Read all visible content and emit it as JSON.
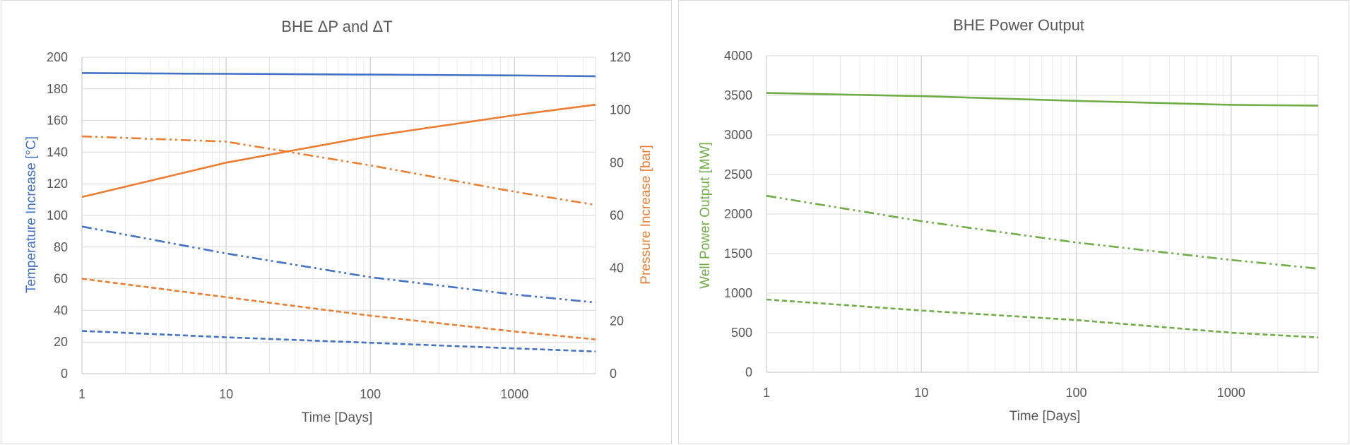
{
  "chart_data": [
    {
      "type": "line",
      "title": "BHE ΔP and ΔT",
      "xlabel": "Time [Days]",
      "ylabel": "Temperature Increase [°C]",
      "y2label": "Pressure Increase [bar]",
      "xscale": "log",
      "xlim": [
        1,
        3650
      ],
      "ylim": [
        0,
        200
      ],
      "y2lim": [
        0,
        120
      ],
      "x_ticks": [
        "1",
        "10",
        "100",
        "1000"
      ],
      "y_ticks": [
        "0",
        "20",
        "40",
        "60",
        "80",
        "100",
        "120",
        "140",
        "160",
        "180",
        "200"
      ],
      "y2_ticks": [
        "0",
        "20",
        "40",
        "60",
        "80",
        "100",
        "120"
      ],
      "grid": true,
      "legend": "none",
      "colors": {
        "temperature": "#4472c4",
        "pressure": "#ed7d31"
      },
      "series": [
        {
          "axis": "y",
          "color": "#4472c4",
          "dash": "solid",
          "x": [
            1,
            10,
            100,
            1000,
            3650
          ],
          "values": [
            190,
            189.5,
            189,
            188.5,
            188
          ]
        },
        {
          "axis": "y",
          "color": "#4472c4",
          "dash": "dashdot",
          "x": [
            1,
            10,
            100,
            1000,
            3650
          ],
          "values": [
            93,
            76,
            61,
            50,
            45
          ]
        },
        {
          "axis": "y",
          "color": "#4472c4",
          "dash": "dashed",
          "x": [
            1,
            10,
            100,
            1000,
            3650
          ],
          "values": [
            27,
            23,
            19.5,
            16,
            14
          ]
        },
        {
          "axis": "y2",
          "color": "#ed7d31",
          "dash": "solid",
          "x": [
            1,
            10,
            100,
            1000,
            3650
          ],
          "values": [
            67,
            80,
            90,
            98,
            102
          ]
        },
        {
          "axis": "y2",
          "color": "#ed7d31",
          "dash": "dashdot",
          "x": [
            1,
            10,
            100,
            1000,
            3650
          ],
          "values": [
            90,
            88,
            79,
            69,
            64
          ]
        },
        {
          "axis": "y2",
          "color": "#ed7d31",
          "dash": "dashed",
          "x": [
            1,
            10,
            100,
            1000,
            3650
          ],
          "values": [
            36,
            29,
            22,
            16,
            13
          ]
        }
      ]
    },
    {
      "type": "line",
      "title": "BHE Power Output",
      "xlabel": "Time [Days]",
      "ylabel": "Well Power Output [MW]",
      "xscale": "log",
      "xlim": [
        1,
        3650
      ],
      "ylim": [
        0,
        4000
      ],
      "x_ticks": [
        "1",
        "10",
        "100",
        "1000"
      ],
      "y_ticks": [
        "0",
        "500",
        "1000",
        "1500",
        "2000",
        "2500",
        "3000",
        "3500",
        "4000"
      ],
      "grid": true,
      "legend": "none",
      "colors": {
        "power": "#70ad47"
      },
      "series": [
        {
          "axis": "y",
          "color": "#70ad47",
          "dash": "solid",
          "x": [
            1,
            10,
            100,
            1000,
            3650
          ],
          "values": [
            3530,
            3490,
            3430,
            3380,
            3370
          ]
        },
        {
          "axis": "y",
          "color": "#70ad47",
          "dash": "dashdot",
          "x": [
            1,
            10,
            100,
            1000,
            3650
          ],
          "values": [
            2230,
            1910,
            1640,
            1420,
            1310
          ]
        },
        {
          "axis": "y",
          "color": "#70ad47",
          "dash": "dashed",
          "x": [
            1,
            10,
            100,
            1000,
            3650
          ],
          "values": [
            920,
            780,
            660,
            500,
            440
          ]
        }
      ]
    }
  ]
}
